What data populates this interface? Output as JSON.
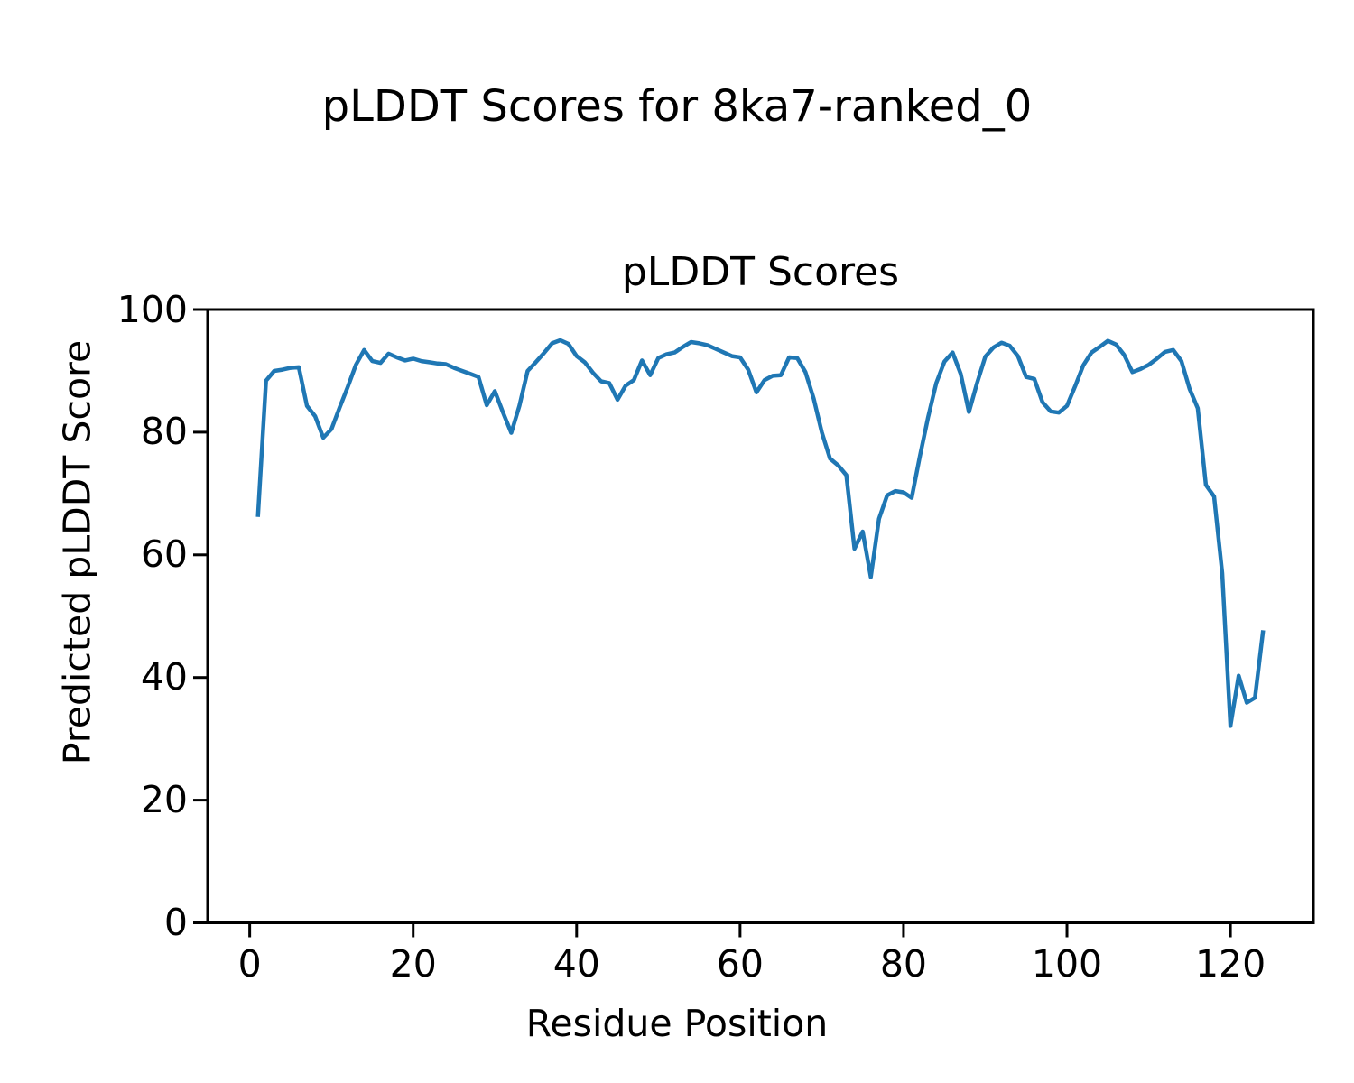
{
  "figure": {
    "title": "pLDDT Scores for 8ka7-ranked_0"
  },
  "chart_data": {
    "type": "line",
    "title": "pLDDT Scores",
    "xlabel": "Residue Position",
    "ylabel": "Predicted pLDDT Score",
    "series_name": "pLDDT",
    "line_color": "#1f77b4",
    "background_color": "#ffffff",
    "text_color": "#000000",
    "grid": false,
    "legend_position": "none",
    "x_ticks": [
      0,
      20,
      40,
      60,
      80,
      100,
      120
    ],
    "y_ticks": [
      0,
      20,
      40,
      60,
      80,
      100
    ],
    "xlim": [
      -5.15,
      130.15
    ],
    "ylim": [
      0,
      100
    ],
    "x_start": 1,
    "x_end": 124,
    "values": [
      66.2,
      88.4,
      90.0,
      90.2,
      90.5,
      90.6,
      84.3,
      82.6,
      79.1,
      80.5,
      84.0,
      87.4,
      91.0,
      93.4,
      91.6,
      91.3,
      92.8,
      92.2,
      91.7,
      92.0,
      91.6,
      91.4,
      91.2,
      91.1,
      90.5,
      90.0,
      89.5,
      89.0,
      84.4,
      86.7,
      83.2,
      79.9,
      84.3,
      90.0,
      91.4,
      92.9,
      94.5,
      95.0,
      94.4,
      92.4,
      91.4,
      89.7,
      88.3,
      88.0,
      85.3,
      87.6,
      88.5,
      91.7,
      89.3,
      92.1,
      92.7,
      93.0,
      93.9,
      94.7,
      94.5,
      94.2,
      93.6,
      93.0,
      92.4,
      92.2,
      90.2,
      86.5,
      88.5,
      89.2,
      89.3,
      92.2,
      92.1,
      89.8,
      85.5,
      80.0,
      75.7,
      74.6,
      73.0,
      61.0,
      63.8,
      56.4,
      65.9,
      69.7,
      70.4,
      70.2,
      69.3,
      76.1,
      82.4,
      88.0,
      91.5,
      93.0,
      89.5,
      83.3,
      88.0,
      92.3,
      93.8,
      94.6,
      94.1,
      92.4,
      89.0,
      88.7,
      84.9,
      83.4,
      83.2,
      84.3,
      87.5,
      90.9,
      93.0,
      93.9,
      94.9,
      94.3,
      92.6,
      89.8,
      90.3,
      91.0,
      92.0,
      93.1,
      93.4,
      91.6,
      87.1,
      83.9,
      71.4,
      69.5,
      57.0,
      32.1,
      40.3,
      35.9,
      36.7,
      47.7
    ]
  }
}
